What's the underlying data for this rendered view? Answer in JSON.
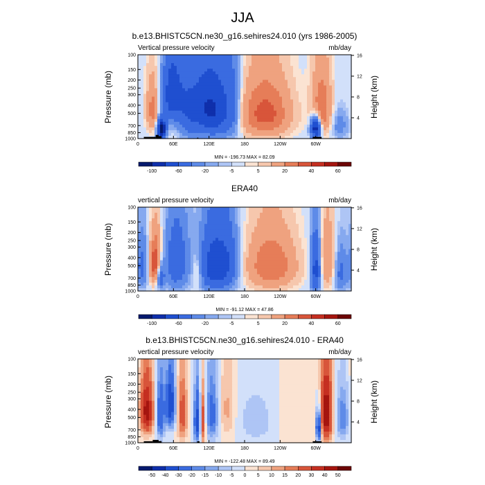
{
  "figure": {
    "main_title": "JJA",
    "panels": [
      {
        "title": "b.e13.BHISTC5CN.ne30_g16.sehires24.010 (yrs 1986-2005)",
        "left_string": "Vertical pressure velocity",
        "right_string": "mb/day",
        "stats": "MIN = -196.73  MAX =  82.09",
        "colorbar_labels": [
          "-100",
          "-60",
          "-20",
          "-5",
          "5",
          "20",
          "40",
          "60"
        ]
      },
      {
        "title": "ERA40",
        "left_string": "vertical pressure velocity",
        "right_string": "mb/day",
        "stats": "MIN = -91.12  MAX =  47.86",
        "colorbar_labels": [
          "-100",
          "-60",
          "-20",
          "-5",
          "5",
          "20",
          "40",
          "60"
        ]
      },
      {
        "title": "b.e13.BHISTC5CN.ne30_g16.sehires24.010 - ERA40",
        "left_string": "vertical pressure velocity",
        "right_string": "mb/day",
        "stats": "MIN = -122.48  MAX =  89.49",
        "colorbar_labels": [
          "-50",
          "-40",
          "-30",
          "-20",
          "-15",
          "-10",
          "-5",
          "0",
          "5",
          "10",
          "15",
          "20",
          "30",
          "40",
          "50"
        ]
      }
    ]
  },
  "chart_data": [
    {
      "type": "heatmap",
      "title": "b.e13.BHISTC5CN.ne30_g16.sehires24.010 (yrs 1986-2005)",
      "subtitle": "Vertical pressure velocity",
      "units": "mb/day",
      "ylabel": "Pressure (mb)",
      "ylabel_right": "Height (km)",
      "x_ticks": [
        "0",
        "60E",
        "120E",
        "180",
        "120W",
        "60W"
      ],
      "y_ticks": [
        "100",
        "150",
        "200",
        "250",
        "300",
        "400",
        "500",
        "700",
        "850",
        "1000"
      ],
      "y_ticks_right": [
        "16",
        "12",
        "8",
        "4"
      ],
      "x_range": [
        0,
        360
      ],
      "y_range": [
        1000,
        100
      ],
      "min": -196.73,
      "max": 82.09,
      "contour_levels": [
        -100,
        -80,
        -60,
        -40,
        -20,
        -10,
        -5,
        -2.5,
        2.5,
        5,
        10,
        20,
        30,
        40,
        50,
        60
      ],
      "colorbar_labels": [
        "-100",
        "-60",
        "-20",
        "-5",
        "5",
        "20",
        "40",
        "60"
      ],
      "fields": [
        {
          "lon": 25,
          "p": 450,
          "slon": 8,
          "sp": 230,
          "amp": 25
        },
        {
          "lon": 40,
          "p": 780,
          "slon": 5,
          "sp": 140,
          "amp": -100
        },
        {
          "lon": 58,
          "p": 300,
          "slon": 12,
          "sp": 200,
          "amp": -55
        },
        {
          "lon": 85,
          "p": 450,
          "slon": 12,
          "sp": 300,
          "amp": -35
        },
        {
          "lon": 110,
          "p": 420,
          "slon": 14,
          "sp": 300,
          "amp": -40
        },
        {
          "lon": 135,
          "p": 450,
          "slon": 16,
          "sp": 300,
          "amp": -50
        },
        {
          "lon": 160,
          "p": 400,
          "slon": 10,
          "sp": 350,
          "amp": -20
        },
        {
          "lon": 215,
          "p": 500,
          "slon": 30,
          "sp": 280,
          "amp": 35
        },
        {
          "lon": 300,
          "p": 750,
          "slon": 6,
          "sp": 150,
          "amp": -80
        },
        {
          "lon": 310,
          "p": 450,
          "slon": 12,
          "sp": 280,
          "amp": 30
        },
        {
          "lon": 340,
          "p": 700,
          "slon": 10,
          "sp": 200,
          "amp": -15
        }
      ],
      "topography": [
        [
          10,
          30,
          955
        ],
        [
          30,
          35,
          905
        ],
        [
          35,
          40,
          935
        ],
        [
          100,
          102,
          975
        ],
        [
          295,
          310,
          955
        ]
      ]
    },
    {
      "type": "heatmap",
      "title": "ERA40",
      "subtitle": "vertical pressure velocity",
      "units": "mb/day",
      "ylabel": "Pressure (mb)",
      "ylabel_right": "Height (km)",
      "x_ticks": [
        "0",
        "60E",
        "120E",
        "180",
        "120W",
        "60W"
      ],
      "y_ticks": [
        "100",
        "150",
        "200",
        "250",
        "300",
        "400",
        "500",
        "700",
        "850",
        "1000"
      ],
      "y_ticks_right": [
        "16",
        "12",
        "8",
        "4"
      ],
      "x_range": [
        0,
        360
      ],
      "y_range": [
        1000,
        100
      ],
      "min": -91.12,
      "max": 47.86,
      "contour_levels": [
        -100,
        -80,
        -60,
        -40,
        -20,
        -10,
        -5,
        -2.5,
        2.5,
        5,
        10,
        20,
        30,
        40,
        50,
        60
      ],
      "colorbar_labels": [
        "-100",
        "-60",
        "-20",
        "-5",
        "5",
        "20",
        "40",
        "60"
      ],
      "fields": [
        {
          "lon": 8,
          "p": 500,
          "slon": 8,
          "sp": 250,
          "amp": -25
        },
        {
          "lon": 30,
          "p": 480,
          "slon": 8,
          "sp": 220,
          "amp": 45
        },
        {
          "lon": 38,
          "p": 650,
          "slon": 5,
          "sp": 180,
          "amp": -40
        },
        {
          "lon": 65,
          "p": 450,
          "slon": 14,
          "sp": 300,
          "amp": -35
        },
        {
          "lon": 100,
          "p": 600,
          "slon": 6,
          "sp": 200,
          "amp": 15
        },
        {
          "lon": 130,
          "p": 500,
          "slon": 18,
          "sp": 300,
          "amp": -55
        },
        {
          "lon": 155,
          "p": 450,
          "slon": 12,
          "sp": 300,
          "amp": -20
        },
        {
          "lon": 225,
          "p": 500,
          "slon": 30,
          "sp": 280,
          "amp": 30
        },
        {
          "lon": 300,
          "p": 550,
          "slon": 6,
          "sp": 300,
          "amp": -50
        },
        {
          "lon": 320,
          "p": 450,
          "slon": 10,
          "sp": 300,
          "amp": 20
        },
        {
          "lon": 342,
          "p": 600,
          "slon": 8,
          "sp": 250,
          "amp": -25
        }
      ],
      "topography": []
    },
    {
      "type": "heatmap",
      "title": "b.e13.BHISTC5CN.ne30_g16.sehires24.010 - ERA40",
      "subtitle": "vertical pressure velocity",
      "units": "mb/day",
      "ylabel": "Pressure (mb)",
      "ylabel_right": "Height (km)",
      "x_ticks": [
        "0",
        "60E",
        "120E",
        "180",
        "120W",
        "60W"
      ],
      "y_ticks": [
        "100",
        "150",
        "200",
        "250",
        "300",
        "400",
        "500",
        "700",
        "850",
        "1000"
      ],
      "y_ticks_right": [
        "16",
        "12",
        "8",
        "4"
      ],
      "x_range": [
        0,
        360
      ],
      "y_range": [
        1000,
        100
      ],
      "min": -122.48,
      "max": 89.49,
      "contour_levels": [
        -60,
        -50,
        -40,
        -30,
        -20,
        -15,
        -10,
        -5,
        0,
        5,
        10,
        15,
        20,
        30,
        40,
        50,
        60
      ],
      "colorbar_labels": [
        "-50",
        "-40",
        "-30",
        "-20",
        "-15",
        "-10",
        "-5",
        "0",
        "5",
        "10",
        "15",
        "20",
        "30",
        "40",
        "50"
      ],
      "fields": [
        {
          "lon": 15,
          "p": 420,
          "slon": 8,
          "sp": 230,
          "amp": 45
        },
        {
          "lon": 38,
          "p": 450,
          "slon": 5,
          "sp": 280,
          "amp": -30
        },
        {
          "lon": 55,
          "p": 350,
          "slon": 6,
          "sp": 200,
          "amp": -40
        },
        {
          "lon": 75,
          "p": 450,
          "slon": 6,
          "sp": 300,
          "amp": 25
        },
        {
          "lon": 100,
          "p": 550,
          "slon": 4,
          "sp": 300,
          "amp": -35
        },
        {
          "lon": 110,
          "p": 550,
          "slon": 3,
          "sp": 300,
          "amp": 30
        },
        {
          "lon": 125,
          "p": 450,
          "slon": 8,
          "sp": 300,
          "amp": -25
        },
        {
          "lon": 150,
          "p": 400,
          "slon": 10,
          "sp": 300,
          "amp": 12
        },
        {
          "lon": 200,
          "p": 550,
          "slon": 25,
          "sp": 300,
          "amp": -8
        },
        {
          "lon": 260,
          "p": 550,
          "slon": 20,
          "sp": 300,
          "amp": 5
        },
        {
          "lon": 305,
          "p": 650,
          "slon": 3,
          "sp": 200,
          "amp": -45
        },
        {
          "lon": 318,
          "p": 450,
          "slon": 7,
          "sp": 300,
          "amp": 50
        },
        {
          "lon": 345,
          "p": 500,
          "slon": 8,
          "sp": 250,
          "amp": -20
        }
      ],
      "topography": [
        [
          10,
          25,
          960
        ],
        [
          25,
          35,
          925
        ],
        [
          35,
          40,
          955
        ],
        [
          100,
          104,
          960
        ],
        [
          295,
          310,
          960
        ]
      ]
    }
  ],
  "colors": {
    "scale_16": [
      "#061a6e",
      "#0f2fab",
      "#1f4fd0",
      "#3a6be0",
      "#5e8be8",
      "#86a9ef",
      "#aec5f5",
      "#d2e0fa",
      "#fbe3d2",
      "#f6c7ad",
      "#efa27f",
      "#e67d58",
      "#d8553a",
      "#c52f21",
      "#a5150f",
      "#6d0606"
    ],
    "scale_16_diff": [
      "#061a6e",
      "#0f2fab",
      "#1f4fd0",
      "#3a6be0",
      "#5e8be8",
      "#86a9ef",
      "#aec5f5",
      "#d2e0fa",
      "#fbe3d2",
      "#f6c7ad",
      "#efa27f",
      "#e67d58",
      "#d8553a",
      "#c52f21",
      "#a5150f",
      "#6d0606"
    ],
    "topography": "#000000"
  }
}
